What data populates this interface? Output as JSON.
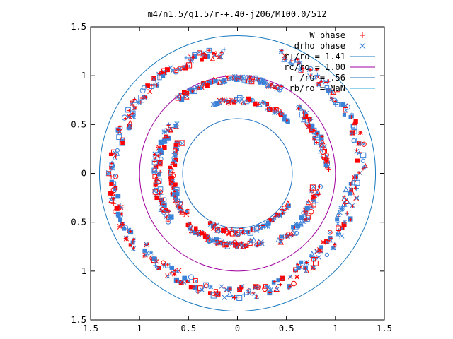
{
  "chart_data": {
    "type": "scatter",
    "title": "m4/n1.5/q1.5/r-+.40-j206/M100.0/512",
    "xlim": [
      -1.5,
      1.5
    ],
    "ylim": [
      -1.5,
      1.5
    ],
    "x_ticks": [
      {
        "value": -1.5,
        "label": "1.5"
      },
      {
        "value": -1.0,
        "label": "1"
      },
      {
        "value": -0.5,
        "label": "0.5"
      },
      {
        "value": 0,
        "label": "0"
      },
      {
        "value": 0.5,
        "label": "0.5"
      },
      {
        "value": 1.0,
        "label": "1"
      },
      {
        "value": 1.5,
        "label": "1.5"
      }
    ],
    "y_ticks": [
      {
        "value": 1.5,
        "label": "1.5"
      },
      {
        "value": 1.0,
        "label": "1"
      },
      {
        "value": 0.5,
        "label": "0.5"
      },
      {
        "value": 0,
        "label": "0"
      },
      {
        "value": -0.5,
        "label": "0.5"
      },
      {
        "value": -1.0,
        "label": "1"
      },
      {
        "value": -1.5,
        "label": "1.5"
      }
    ],
    "grid": false,
    "legend_position": "top-right",
    "series": [
      {
        "name": "W phase",
        "marker": "plus",
        "color": "#ff0000"
      },
      {
        "name": "drho phase",
        "marker": "cross",
        "color": "#3a82d8"
      }
    ],
    "circles": [
      {
        "name": "r+/ro = 1.41",
        "radius": 1.41,
        "color": "#1a7abf"
      },
      {
        "name": "rc/ro = 1.00",
        "radius": 1.0,
        "color": "#a000a0"
      },
      {
        "name": "r-/ro = .56",
        "radius": 0.56,
        "color": "#1f6fbf"
      },
      {
        "name": "rb/ro = NaN",
        "radius": null,
        "color": "#2aaad4"
      }
    ],
    "arcs": [
      {
        "radius": 0.97,
        "start_deg": 62,
        "end_deg": 128,
        "width": 0.05,
        "count": 70
      },
      {
        "radius": 0.83,
        "start_deg": 140,
        "end_deg": 215,
        "width": 0.08,
        "count": 60
      },
      {
        "radius": 0.67,
        "start_deg": 150,
        "end_deg": 220,
        "width": 0.06,
        "count": 50
      },
      {
        "radius": 0.73,
        "start_deg": 225,
        "end_deg": 290,
        "width": 0.06,
        "count": 50
      },
      {
        "radius": 0.6,
        "start_deg": 240,
        "end_deg": 330,
        "width": 0.05,
        "count": 50
      },
      {
        "radius": 0.82,
        "start_deg": 300,
        "end_deg": 350,
        "width": 0.08,
        "count": 45
      },
      {
        "radius": 0.9,
        "start_deg": 2,
        "end_deg": 48,
        "width": 0.07,
        "count": 45
      },
      {
        "radius": 0.75,
        "start_deg": 45,
        "end_deg": 110,
        "width": 0.05,
        "count": 45
      },
      {
        "radius": 1.25,
        "start_deg": 95,
        "end_deg": 165,
        "width": 0.1,
        "count": 70
      },
      {
        "radius": 1.28,
        "start_deg": 168,
        "end_deg": 215,
        "width": 0.08,
        "count": 50
      },
      {
        "radius": 1.22,
        "start_deg": 218,
        "end_deg": 300,
        "width": 0.12,
        "count": 75
      },
      {
        "radius": 1.18,
        "start_deg": 300,
        "end_deg": 360,
        "width": 0.14,
        "count": 65
      },
      {
        "radius": 1.28,
        "start_deg": 2,
        "end_deg": 70,
        "width": 0.1,
        "count": 60
      }
    ]
  }
}
